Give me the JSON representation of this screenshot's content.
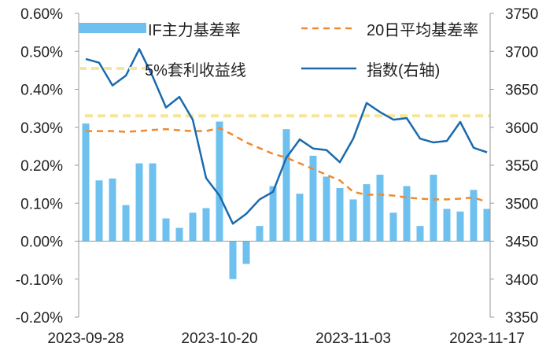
{
  "chart_data": {
    "type": "bar+line",
    "title": "",
    "left_axis": {
      "min": -0.2,
      "max": 0.6,
      "step": 0.1,
      "tick_labels": [
        "-0.20%",
        "-0.10%",
        "0.00%",
        "0.10%",
        "0.20%",
        "0.30%",
        "0.40%",
        "0.50%",
        "0.60%"
      ]
    },
    "right_axis": {
      "min": 3350,
      "max": 3750,
      "step": 50,
      "tick_labels": [
        "3350",
        "3400",
        "3450",
        "3500",
        "3550",
        "3600",
        "3650",
        "3700",
        "3750"
      ]
    },
    "x_tick_labels": [
      "2023-09-28",
      "2023-10-20",
      "2023-11-03",
      "2023-11-17"
    ],
    "legend": {
      "basis": "IF主力基差率",
      "ma20": "20日平均基差率",
      "threshold": "5%套利收益线",
      "index": "指数(右轴)"
    },
    "colors": {
      "bar": "#6ec1ef",
      "ma20": "#ef8a2f",
      "threshold": "#f7e69a",
      "index": "#1a6aad",
      "axis": "#999999",
      "text": "#222222"
    },
    "threshold_value": 0.33,
    "series": {
      "basis_rate": [
        0.31,
        0.16,
        0.165,
        0.095,
        0.205,
        0.205,
        0.06,
        0.035,
        0.075,
        0.087,
        0.315,
        -0.1,
        -0.06,
        0.04,
        0.145,
        0.295,
        0.125,
        0.225,
        0.17,
        0.14,
        0.11,
        0.15,
        0.175,
        0.075,
        0.145,
        0.04,
        0.175,
        0.085,
        0.078,
        0.135,
        0.085
      ],
      "ma20_rate": [
        0.29,
        0.29,
        0.29,
        0.288,
        0.29,
        0.293,
        0.295,
        0.292,
        0.29,
        0.29,
        0.298,
        0.28,
        0.26,
        0.245,
        0.23,
        0.22,
        0.205,
        0.19,
        0.175,
        0.16,
        0.13,
        0.122,
        0.123,
        0.12,
        0.115,
        0.112,
        0.11,
        0.11,
        0.112,
        0.115,
        0.103
      ],
      "index_value": [
        3690,
        3685,
        3655,
        3668,
        3703,
        3667,
        3626,
        3640,
        3610,
        3533,
        3510,
        3473,
        3486,
        3505,
        3515,
        3560,
        3584,
        3572,
        3570,
        3554,
        3585,
        3632,
        3620,
        3610,
        3612,
        3585,
        3580,
        3582,
        3607,
        3573,
        3567
      ]
    }
  }
}
